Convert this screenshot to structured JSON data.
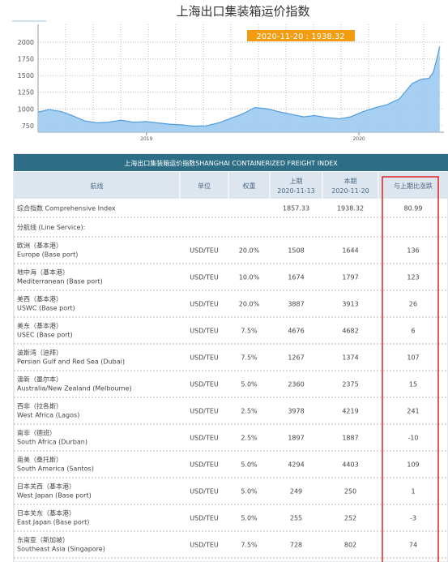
{
  "chart_data": {
    "type": "area",
    "title": "上海出口集装箱运价指数",
    "annotation": "2020-11-20 : 1938.32",
    "x": [
      2018.49,
      2018.54,
      2018.6,
      2018.65,
      2018.71,
      2018.77,
      2018.82,
      2018.88,
      2018.94,
      2019.0,
      2019.05,
      2019.11,
      2019.17,
      2019.22,
      2019.28,
      2019.34,
      2019.39,
      2019.45,
      2019.51,
      2019.57,
      2019.62,
      2019.68,
      2019.74,
      2019.79,
      2019.85,
      2019.91,
      2019.96,
      2020.02,
      2020.08,
      2020.13,
      2020.19,
      2020.25,
      2020.29,
      2020.33,
      2020.35,
      2020.37,
      2020.38
    ],
    "values": [
      950,
      990,
      960,
      900,
      820,
      790,
      800,
      830,
      800,
      810,
      790,
      770,
      760,
      740,
      745,
      790,
      850,
      920,
      1020,
      1000,
      960,
      920,
      880,
      900,
      870,
      850,
      880,
      960,
      1020,
      1060,
      1150,
      1380,
      1440,
      1460,
      1550,
      1800,
      1938.32
    ],
    "color": "#4f9ee0",
    "xlim": [
      2018.49,
      2020.4
    ],
    "ylim": [
      650,
      2270
    ],
    "xticks": [
      2019,
      2020
    ],
    "yticks": [
      750,
      1000,
      1250,
      1500,
      1750,
      2000
    ],
    "grid": true
  },
  "table": {
    "title": "上海出口集装箱运价指数SHANGHAI CONTAINERIZED FREIGHT INDEX",
    "header": [
      "航线",
      "单位",
      "权重",
      [
        "上期",
        "2020-11-13"
      ],
      [
        "本期",
        "2020-11-20"
      ],
      "与上期比涨跌"
    ],
    "rows": [
      {
        "route_zh": "综合指数 Comprehensive Index",
        "previous": "1857.33",
        "current": "1938.32",
        "change": "80.99"
      },
      {
        "section": "分航线 (Line Service):"
      },
      {
        "route_zh": "欧洲（基本港）",
        "route_en": "Europe (Base port)",
        "unit": "USD/TEU",
        "weight": "20.0%",
        "previous": "1508",
        "current": "1644",
        "change": "136"
      },
      {
        "route_zh": "地中海（基本港）",
        "route_en": "Mediterranean (Base port)",
        "unit": "USD/TEU",
        "weight": "10.0%",
        "previous": "1674",
        "current": "1797",
        "change": "123"
      },
      {
        "route_zh": "美西（基本港）",
        "route_en": "USWC (Base port)",
        "unit": "USD/TEU",
        "weight": "20.0%",
        "previous": "3887",
        "current": "3913",
        "change": "26"
      },
      {
        "route_zh": "美东（基本港）",
        "route_en": "USEC (Base port)",
        "unit": "USD/TEU",
        "weight": "7.5%",
        "previous": "4676",
        "current": "4682",
        "change": "6"
      },
      {
        "route_zh": "波斯湾（迪拜）",
        "route_en": "Persian Gulf and Red Sea (Dubai)",
        "unit": "USD/TEU",
        "weight": "7.5%",
        "previous": "1267",
        "current": "1374",
        "change": "107"
      },
      {
        "route_zh": "澳新（墨尔本）",
        "route_en": "Australia/New Zealand (Melbourne)",
        "unit": "USD/TEU",
        "weight": "5.0%",
        "previous": "2360",
        "current": "2375",
        "change": "15"
      },
      {
        "route_zh": "西非（拉各斯）",
        "route_en": "West Africa (Lagos)",
        "unit": "USD/TEU",
        "weight": "2.5%",
        "previous": "3978",
        "current": "4219",
        "change": "241"
      },
      {
        "route_zh": "南非（德班）",
        "route_en": "South Africa (Durban)",
        "unit": "USD/TEU",
        "weight": "2.5%",
        "previous": "1897",
        "current": "1887",
        "change": "-10"
      },
      {
        "route_zh": "南美（桑托斯）",
        "route_en": "South America (Santos)",
        "unit": "USD/TEU",
        "weight": "5.0%",
        "previous": "4294",
        "current": "4403",
        "change": "109"
      },
      {
        "route_zh": "日本关西（基本港）",
        "route_en": "West Japan (Base port)",
        "unit": "USD/TEU",
        "weight": "5.0%",
        "previous": "249",
        "current": "250",
        "change": "1"
      },
      {
        "route_zh": "日本关东（基本港）",
        "route_en": "East Japan (Base port)",
        "unit": "USD/TEU",
        "weight": "5.0%",
        "previous": "255",
        "current": "252",
        "change": "-3"
      },
      {
        "route_zh": "东南亚（新加坡）",
        "route_en": "Southeast Asia (Singapore)",
        "unit": "USD/TEU",
        "weight": "7.5%",
        "previous": "728",
        "current": "802",
        "change": "74"
      }
    ]
  }
}
